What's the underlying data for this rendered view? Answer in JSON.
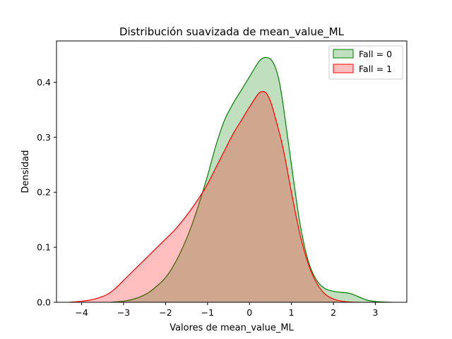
{
  "chart_data": {
    "type": "area",
    "title": "Distribución suavizada de mean_value_ML",
    "xlabel": "Valores de mean_value_ML",
    "ylabel": "Densidad",
    "xlim": [
      -4.6,
      3.75
    ],
    "ylim": [
      0,
      0.475
    ],
    "xticks": [
      -4,
      -3,
      -2,
      -1,
      0,
      1,
      2,
      3
    ],
    "xtick_labels": [
      "−4",
      "−3",
      "−2",
      "−1",
      "0",
      "1",
      "2",
      "3"
    ],
    "yticks": [
      0.0,
      0.1,
      0.2,
      0.3,
      0.4
    ],
    "ytick_labels": [
      "0.0",
      "0.1",
      "0.2",
      "0.3",
      "0.4"
    ],
    "grid": false,
    "legend_position": "top-right",
    "series": [
      {
        "name": "Fall = 0",
        "line_color": "#008000",
        "fill_color": "#008000",
        "fill_opacity": 0.25,
        "x": [
          -3.3,
          -3.0,
          -2.8,
          -2.6,
          -2.4,
          -2.2,
          -2.0,
          -1.8,
          -1.6,
          -1.4,
          -1.2,
          -1.0,
          -0.8,
          -0.6,
          -0.4,
          -0.2,
          0.0,
          0.2,
          0.3,
          0.4,
          0.5,
          0.6,
          0.7,
          0.8,
          1.0,
          1.2,
          1.4,
          1.6,
          1.8,
          2.0,
          2.2,
          2.4,
          2.6,
          2.8,
          3.0,
          3.2,
          3.4
        ],
        "y": [
          0.0,
          0.002,
          0.005,
          0.01,
          0.018,
          0.03,
          0.045,
          0.068,
          0.098,
          0.135,
          0.18,
          0.23,
          0.285,
          0.33,
          0.36,
          0.385,
          0.41,
          0.435,
          0.443,
          0.445,
          0.442,
          0.43,
          0.405,
          0.36,
          0.25,
          0.145,
          0.075,
          0.04,
          0.025,
          0.02,
          0.018,
          0.016,
          0.01,
          0.004,
          0.0015,
          0.0005,
          0.0
        ]
      },
      {
        "name": "Fall = 1",
        "line_color": "#ff0000",
        "fill_color": "#ff0000",
        "fill_opacity": 0.25,
        "x": [
          -4.3,
          -4.0,
          -3.8,
          -3.6,
          -3.4,
          -3.2,
          -3.0,
          -2.8,
          -2.6,
          -2.4,
          -2.2,
          -2.0,
          -1.8,
          -1.6,
          -1.4,
          -1.2,
          -1.0,
          -0.8,
          -0.6,
          -0.4,
          -0.2,
          0.0,
          0.2,
          0.3,
          0.4,
          0.5,
          0.6,
          0.8,
          1.0,
          1.2,
          1.4,
          1.6,
          1.8,
          2.0,
          2.2,
          2.4,
          2.6
        ],
        "y": [
          0.0,
          0.002,
          0.004,
          0.008,
          0.014,
          0.025,
          0.04,
          0.055,
          0.07,
          0.085,
          0.1,
          0.115,
          0.13,
          0.148,
          0.168,
          0.19,
          0.215,
          0.245,
          0.275,
          0.305,
          0.33,
          0.355,
          0.378,
          0.383,
          0.38,
          0.365,
          0.34,
          0.28,
          0.2,
          0.125,
          0.07,
          0.035,
          0.015,
          0.006,
          0.002,
          0.0005,
          0.0
        ]
      }
    ]
  }
}
